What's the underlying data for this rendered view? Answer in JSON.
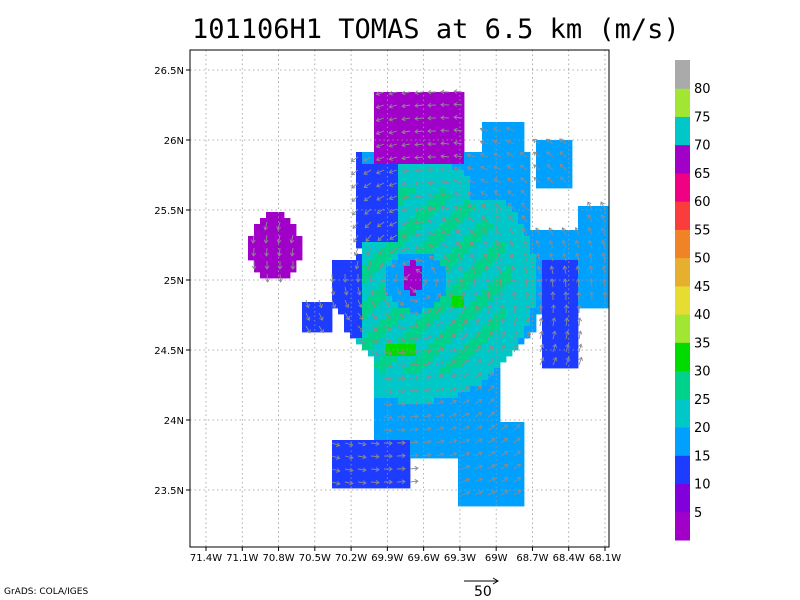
{
  "title": "101106H1 TOMAS at 6.5 km (m/s)",
  "credit": "GrADS: COLA/IGES",
  "reference_vector_label": "50",
  "axes": {
    "lat_labels": [
      "26.5N",
      "26N",
      "25.5N",
      "25N",
      "24.5N",
      "24N",
      "23.5N"
    ],
    "lat_values": [
      26.5,
      26.0,
      25.5,
      25.0,
      24.5,
      24.0,
      23.5
    ],
    "lon_labels": [
      "71.4W",
      "71.1W",
      "70.8W",
      "70.5W",
      "70.2W",
      "69.9W",
      "69.6W",
      "69.3W",
      "69W",
      "68.7W",
      "68.4W",
      "68.1W"
    ],
    "lon_values": [
      -71.4,
      -71.1,
      -70.8,
      -70.5,
      -70.2,
      -69.9,
      -69.6,
      -69.3,
      -69.0,
      -68.7,
      -68.4,
      -68.1
    ],
    "lon_range": [
      -71.5,
      -68.1
    ],
    "lat_range": [
      23.1,
      26.6
    ],
    "grid": true
  },
  "colorbar": {
    "labels": [
      "5",
      "10",
      "15",
      "20",
      "25",
      "30",
      "35",
      "40",
      "45",
      "50",
      "55",
      "60",
      "65",
      "70",
      "75",
      "80"
    ],
    "colors": [
      "#a000c8",
      "#8200dc",
      "#1e3cff",
      "#00a0ff",
      "#00c8c8",
      "#00d28c",
      "#00dc00",
      "#a0e632",
      "#e6dc32",
      "#e6af2d",
      "#f08228",
      "#fa3c3c",
      "#f00082",
      "#a000c8",
      "#00c8c8",
      "#a0e632",
      "#aaaaaa"
    ]
  },
  "storm_center": {
    "lon": -69.68,
    "lat": 25.0
  }
}
